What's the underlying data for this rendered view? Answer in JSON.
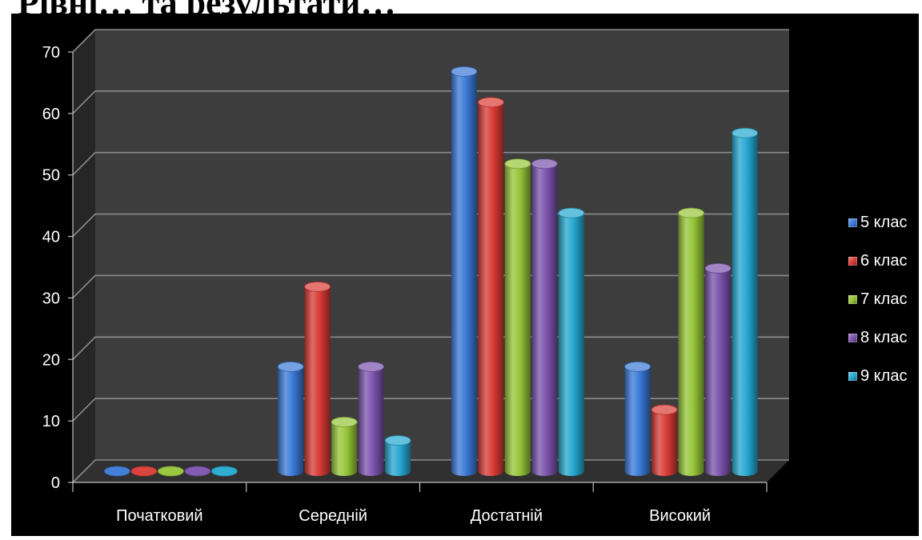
{
  "page": {
    "title": "Рівні…  та результати…"
  },
  "chart_data": {
    "type": "bar",
    "title": "",
    "xlabel": "",
    "ylabel": "",
    "ylim": [
      0,
      70
    ],
    "yticks": [
      0,
      10,
      20,
      30,
      40,
      50,
      60,
      70
    ],
    "ytick_labels": [
      "0",
      "10",
      "20",
      "30",
      "40",
      "50",
      "60",
      "70"
    ],
    "grid": true,
    "legend_position": "right",
    "categories": [
      "Початковий",
      "Середній",
      "Достатній",
      "Високий"
    ],
    "series": [
      {
        "name": "5 клас",
        "color": "#3a78d6",
        "values": [
          0,
          17,
          65,
          17
        ]
      },
      {
        "name": "6 клас",
        "color": "#d83a34",
        "values": [
          0,
          30,
          60,
          10
        ]
      },
      {
        "name": "7 клас",
        "color": "#95c437",
        "values": [
          0,
          8,
          50,
          42
        ]
      },
      {
        "name": "8 клас",
        "color": "#7a52ab",
        "values": [
          0,
          17,
          50,
          33
        ]
      },
      {
        "name": "9 клас",
        "color": "#25a7cf",
        "values": [
          0,
          5,
          42,
          55
        ]
      }
    ]
  }
}
